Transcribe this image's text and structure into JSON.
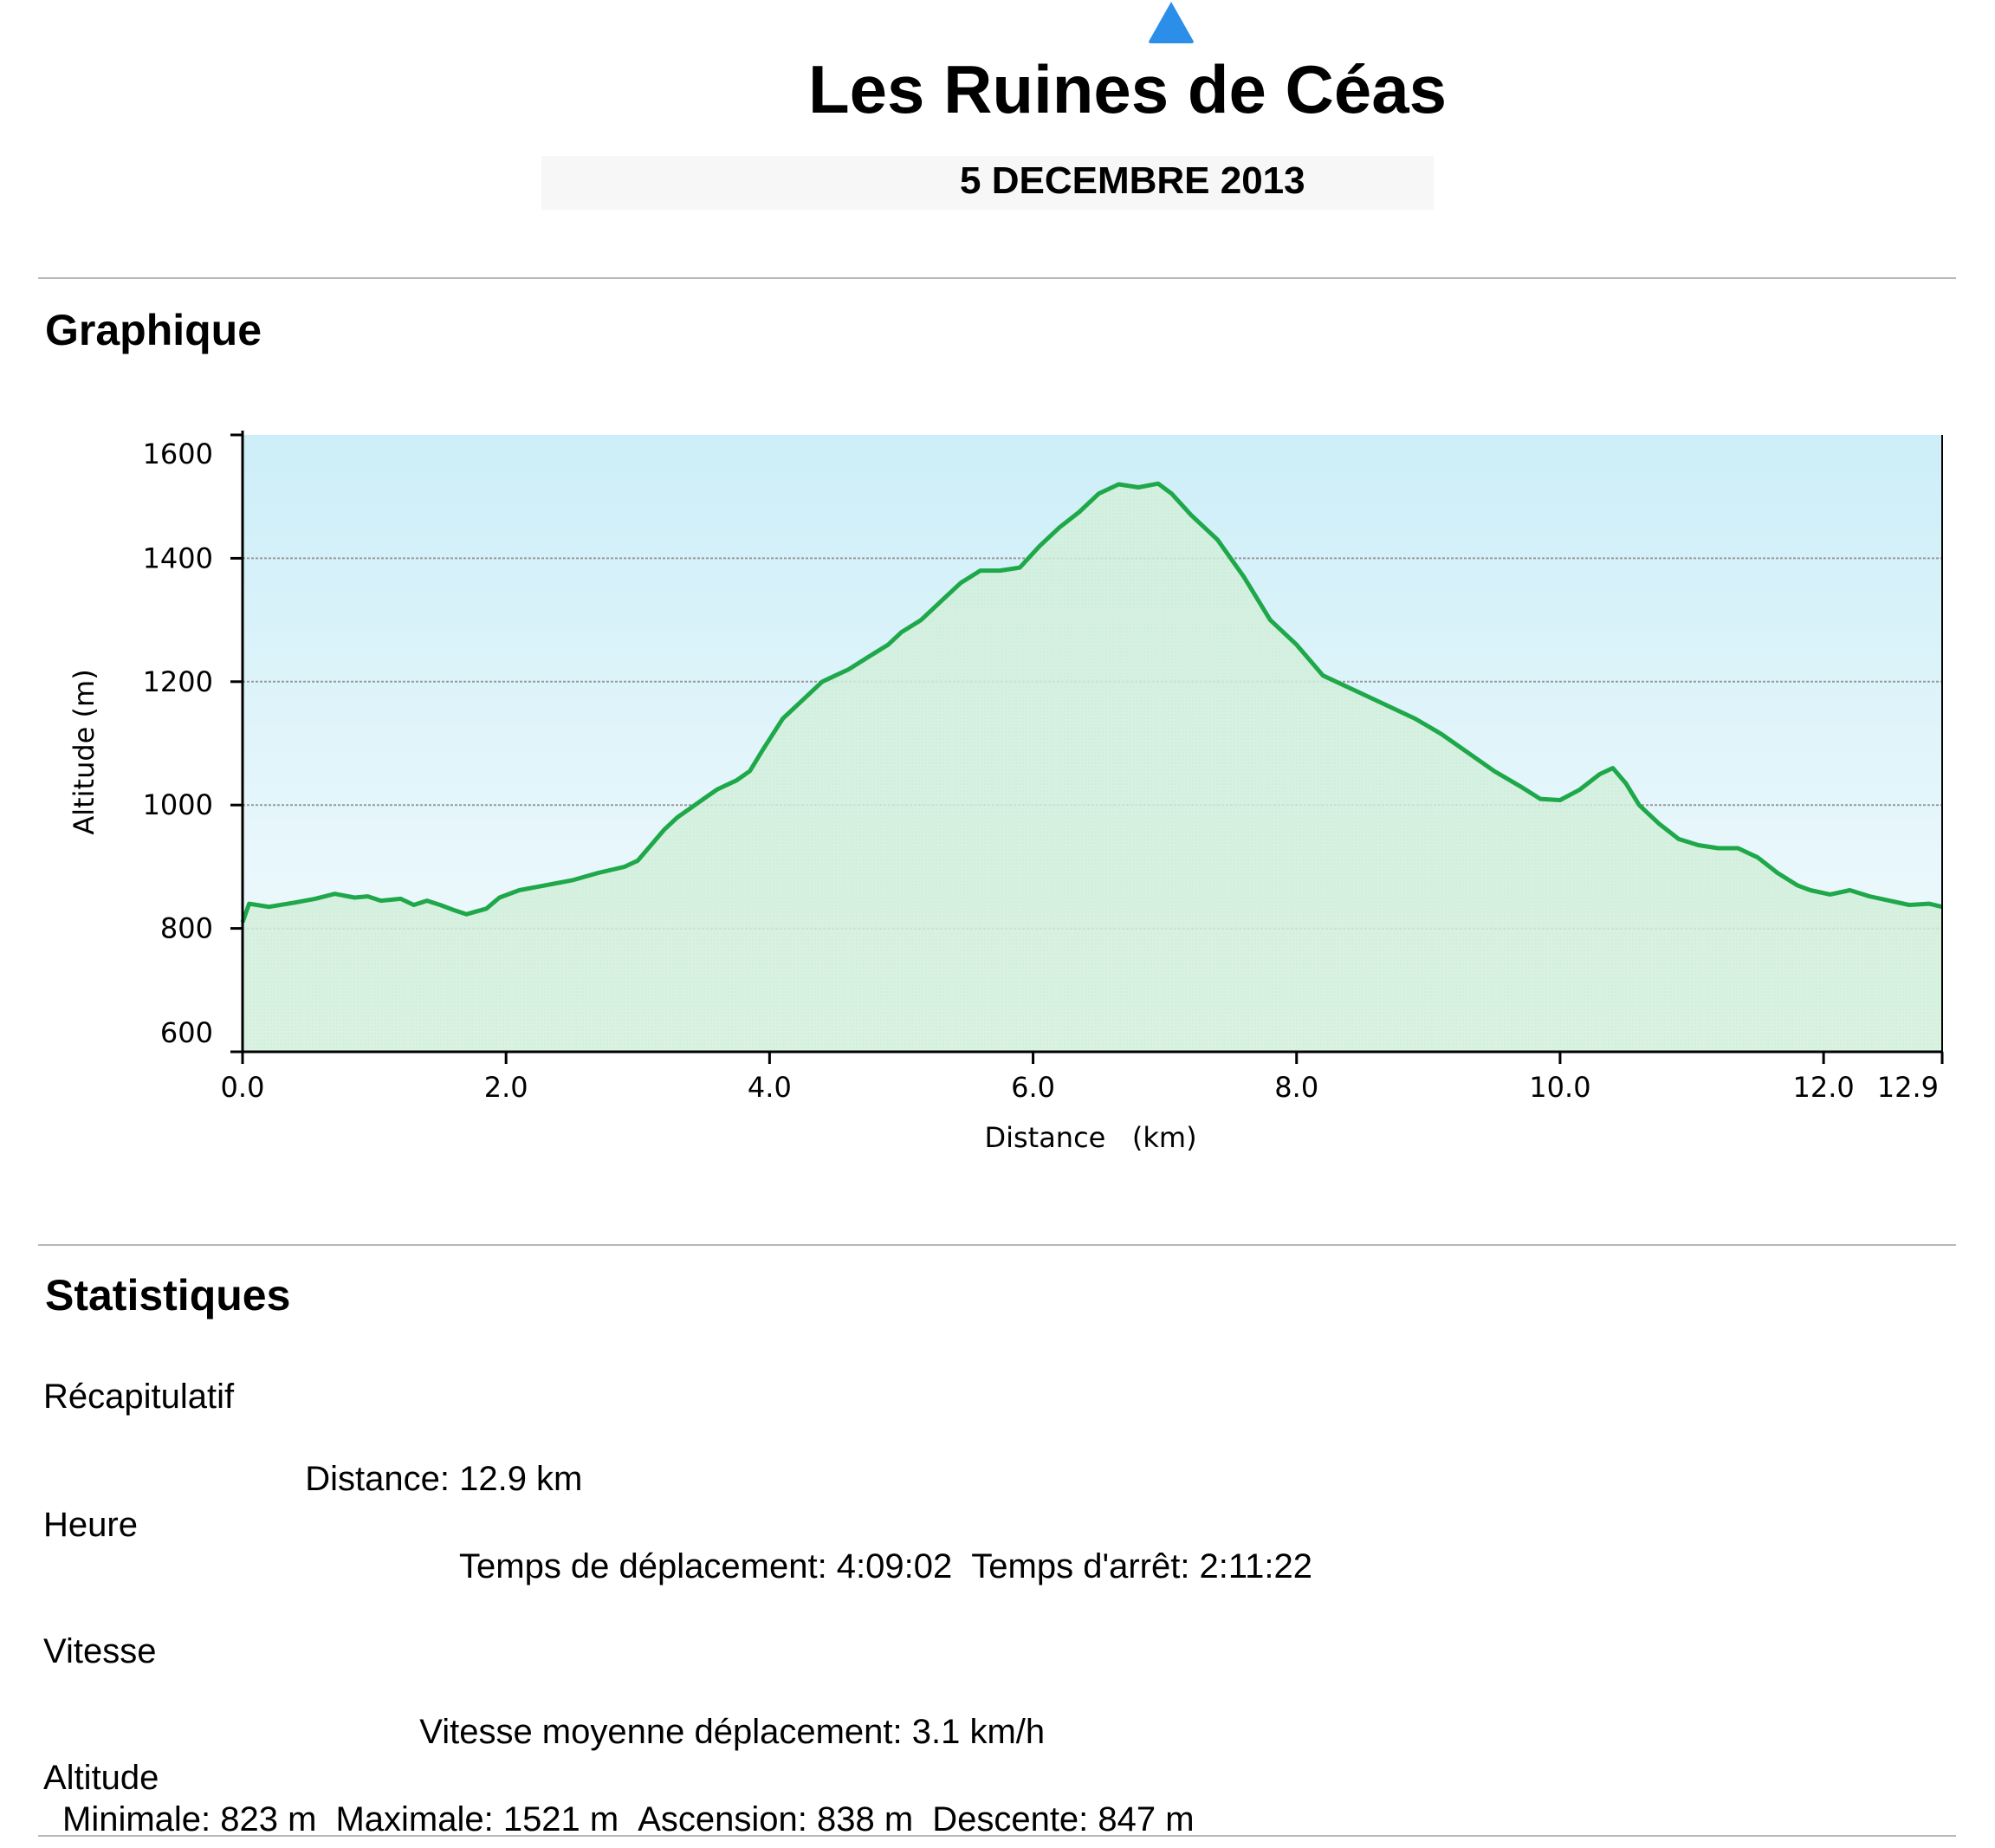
{
  "header": {
    "title": "Les Ruines de Céas",
    "subtitle": "5 DECEMBRE 2013",
    "marker_icon": "blue-triangle-icon",
    "marker_color": "#2b8ee8"
  },
  "sections": {
    "chart_heading": "Graphique",
    "stats_heading": "Statistiques"
  },
  "chart_data": {
    "type": "area",
    "xlabel": "Distance   (km)",
    "ylabel": "Altitude (m)",
    "xlim": [
      0,
      12.9
    ],
    "ylim": [
      600,
      1600
    ],
    "x_ticks": [
      "0.0",
      "2.0",
      "4.0",
      "6.0",
      "8.0",
      "10.0",
      "12.0",
      "12.9"
    ],
    "x_tick_values": [
      0,
      2,
      4,
      6,
      8,
      10,
      12,
      12.9
    ],
    "y_ticks": [
      "600",
      "800",
      "1000",
      "1200",
      "1400",
      "1600"
    ],
    "y_tick_values": [
      600,
      800,
      1000,
      1200,
      1400,
      1600
    ],
    "grid": true,
    "colors": {
      "line": "#1fa84a",
      "fill": "#d4f0dc",
      "background_top": "#cdeef8",
      "background_bottom": "#f4fbfd",
      "grid": "#9a9a9a"
    },
    "series": [
      {
        "x": [
          0,
          0.05,
          0.2,
          0.4,
          0.55,
          0.7,
          0.85,
          0.95,
          1.05,
          1.2,
          1.3,
          1.4,
          1.5,
          1.6,
          1.7,
          1.85,
          1.95,
          2.1,
          2.3,
          2.5,
          2.7,
          2.9,
          3.0,
          3.1,
          3.2,
          3.3,
          3.4,
          3.5,
          3.6,
          3.75,
          3.85,
          3.95,
          4.1,
          4.25,
          4.4,
          4.5,
          4.6,
          4.75,
          4.9,
          5.0,
          5.15,
          5.3,
          5.45,
          5.6,
          5.75,
          5.9,
          6.05,
          6.2,
          6.35,
          6.5,
          6.65,
          6.8,
          6.95,
          7.05,
          7.2,
          7.4,
          7.6,
          7.8,
          8.0,
          8.2,
          8.35,
          8.5,
          8.7,
          8.9,
          9.1,
          9.3,
          9.5,
          9.7,
          9.85,
          10.0,
          10.15,
          10.3,
          10.4,
          10.5,
          10.6,
          10.75,
          10.9,
          11.05,
          11.2,
          11.35,
          11.5,
          11.65,
          11.8,
          11.9,
          12.05,
          12.2,
          12.35,
          12.5,
          12.65,
          12.8,
          12.9
        ],
        "y": [
          810,
          840,
          835,
          842,
          848,
          856,
          850,
          852,
          845,
          848,
          838,
          845,
          838,
          830,
          823,
          832,
          850,
          862,
          870,
          878,
          890,
          900,
          910,
          935,
          960,
          980,
          995,
          1010,
          1025,
          1040,
          1055,
          1090,
          1140,
          1170,
          1200,
          1210,
          1220,
          1240,
          1260,
          1280,
          1300,
          1330,
          1360,
          1380,
          1380,
          1385,
          1420,
          1450,
          1475,
          1505,
          1520,
          1515,
          1521,
          1505,
          1470,
          1430,
          1370,
          1300,
          1260,
          1210,
          1195,
          1180,
          1160,
          1140,
          1115,
          1085,
          1055,
          1030,
          1010,
          1008,
          1025,
          1050,
          1060,
          1035,
          1000,
          970,
          945,
          935,
          930,
          930,
          915,
          890,
          870,
          862,
          855,
          862,
          852,
          845,
          838,
          840,
          835
        ]
      }
    ]
  },
  "stats": {
    "summary": {
      "heading": "Récapitulatif",
      "distance": "Distance: 12.9 km"
    },
    "time": {
      "heading": "Heure",
      "moving": "Temps de déplacement: 4:09:02",
      "stopped": "Temps d'arrêt: 2:11:22"
    },
    "speed": {
      "heading": "Vitesse",
      "moving_avg": "Vitesse moyenne déplacement: 3.1 km/h"
    },
    "altitude": {
      "heading": "Altitude",
      "min": "Minimale: 823 m",
      "max": "Maximale: 1521 m",
      "ascent": "Ascension: 838 m",
      "descent": "Descente: 847 m"
    }
  }
}
